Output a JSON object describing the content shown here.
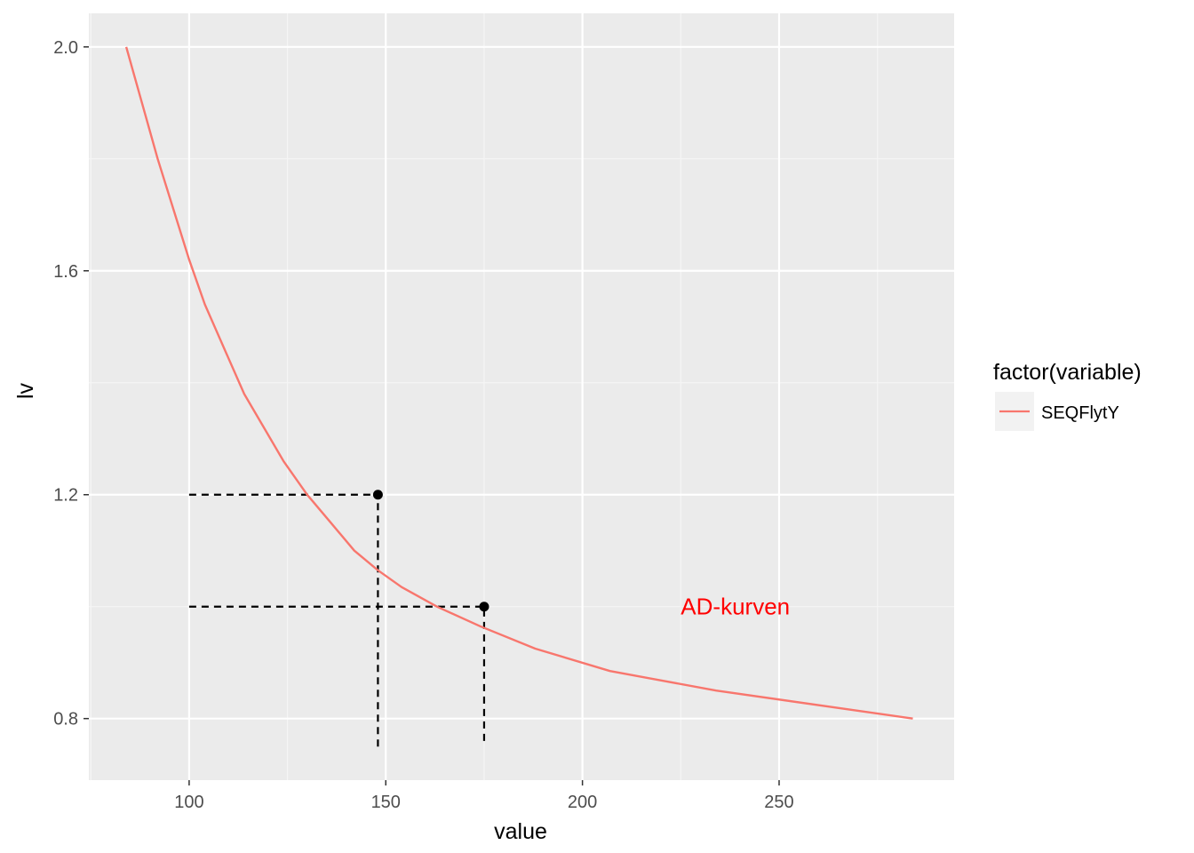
{
  "chart_data": {
    "type": "line",
    "xlabel": "value",
    "ylabel": "lv",
    "xlim": [
      74.5,
      294.5
    ],
    "ylim": [
      0.69,
      2.06
    ],
    "x_ticks": [
      100,
      150,
      200,
      250
    ],
    "x_tick_labels": [
      "100",
      "150",
      "200",
      "250"
    ],
    "x_minor_ticks": [
      75,
      125,
      175,
      225,
      275
    ],
    "y_ticks": [
      0.8,
      1.2,
      1.6,
      2.0
    ],
    "y_tick_labels": [
      "0.8",
      "1.2",
      "1.6",
      "2.0"
    ],
    "y_minor_ticks": [
      1.0,
      1.4,
      1.8
    ],
    "grid": true,
    "legend": {
      "title": "factor(variable)",
      "position": "right",
      "entries": [
        {
          "label": "SEQFlytY",
          "color": "#F8766D"
        }
      ]
    },
    "series": [
      {
        "name": "SEQFlytY",
        "color": "#F8766D",
        "x": [
          84,
          88,
          92,
          96,
          100,
          104,
          109,
          114,
          119,
          124,
          130,
          136,
          142,
          148,
          154,
          163,
          174,
          188,
          207,
          234,
          284
        ],
        "y": [
          2.0,
          1.9,
          1.8,
          1.71,
          1.62,
          1.54,
          1.46,
          1.38,
          1.32,
          1.26,
          1.2,
          1.15,
          1.1,
          1.065,
          1.035,
          1.0,
          0.965,
          0.925,
          0.885,
          0.85,
          0.8
        ]
      }
    ],
    "points": [
      {
        "x": 148,
        "y": 1.2,
        "color": "#000000"
      },
      {
        "x": 175,
        "y": 1.0,
        "color": "#000000"
      }
    ],
    "reference_lines": [
      {
        "type": "horizontal",
        "y": 1.2,
        "x_from": 100,
        "x_to": 148
      },
      {
        "type": "vertical",
        "x": 148,
        "y_from": 0.75,
        "y_to": 1.2
      },
      {
        "type": "horizontal",
        "y": 1.0,
        "x_from": 100,
        "x_to": 175
      },
      {
        "type": "vertical",
        "x": 175,
        "y_from": 0.76,
        "y_to": 1.0
      }
    ],
    "annotations": [
      {
        "text": "AD-kurven",
        "x": 225,
        "y": 1.0,
        "color": "#FF0000"
      }
    ]
  },
  "colors": {
    "panel_background": "#EBEBEB",
    "grid_major": "#FFFFFF",
    "grid_minor": "#F5F5F5",
    "legend_key_background": "#F2F2F2"
  }
}
